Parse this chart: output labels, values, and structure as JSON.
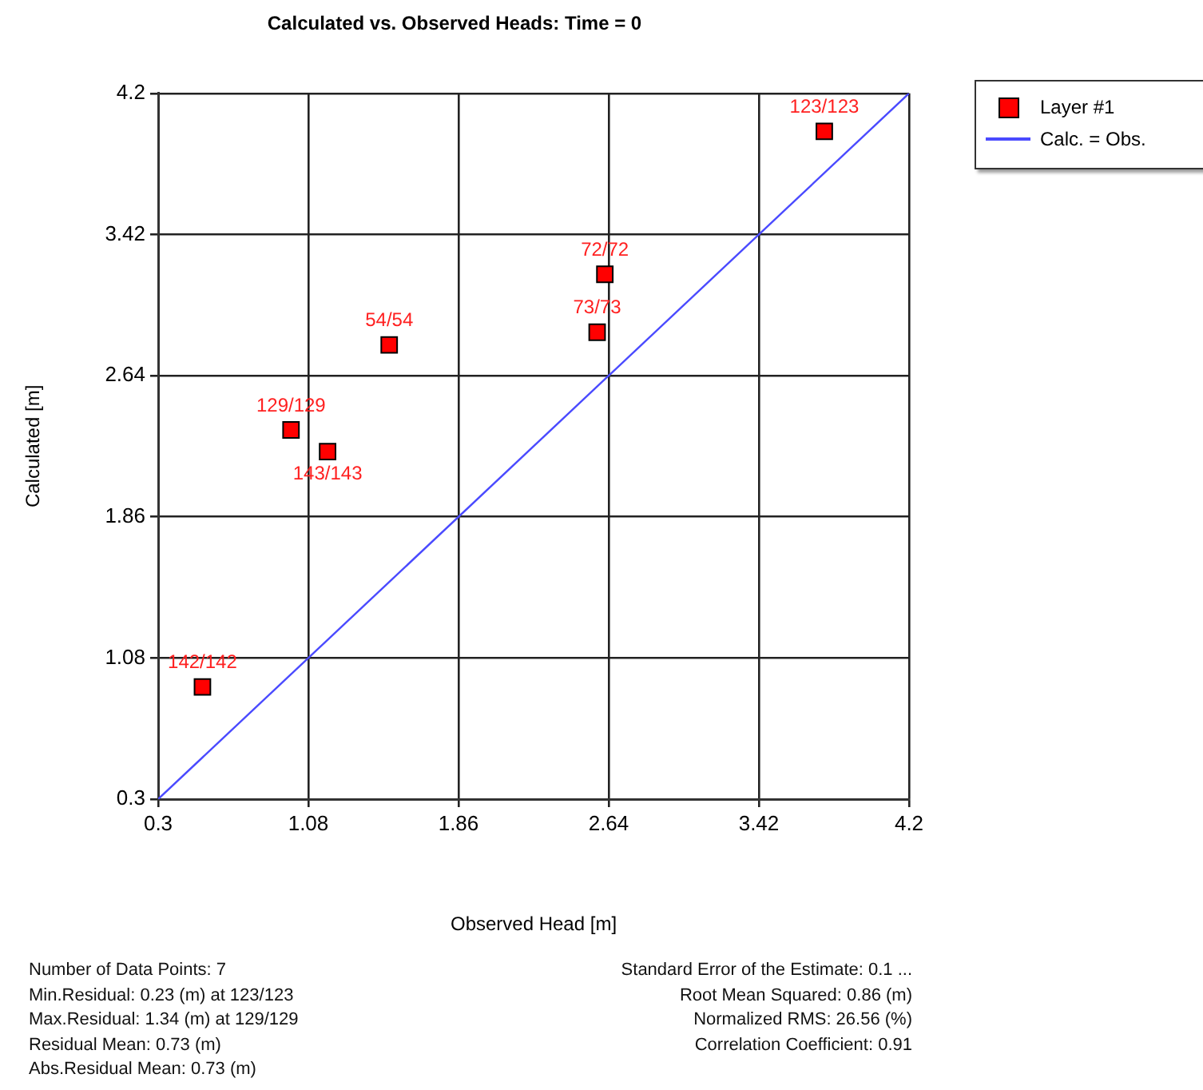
{
  "chart_data": {
    "type": "scatter",
    "title": "Calculated vs. Observed Heads: Time = 0",
    "xlabel": "Observed Head [m]",
    "ylabel": "Calculated [m]",
    "xlim": [
      0.3,
      4.2
    ],
    "ylim": [
      0.3,
      4.2
    ],
    "xticks": [
      0.3,
      1.08,
      1.86,
      2.64,
      3.42,
      4.2
    ],
    "yticks": [
      0.3,
      1.08,
      1.86,
      2.64,
      3.42,
      4.2
    ],
    "grid": true,
    "legend": "top right",
    "marker": "square",
    "series": [
      {
        "name": "Layer #1",
        "color": "#ff0000",
        "x": [
          0.53,
          0.99,
          1.18,
          1.5,
          2.58,
          2.62,
          3.76
        ],
        "values": [
          0.92,
          2.34,
          2.22,
          2.81,
          2.88,
          3.2,
          3.99
        ]
      },
      {
        "name": "Calc. = Obs.",
        "type": "line",
        "color": "#4a4aff",
        "marker": "none",
        "x": [
          0.3,
          4.2
        ],
        "values": [
          0.3,
          4.2
        ]
      }
    ],
    "annotations": [
      {
        "text": "142/142",
        "x": 0.53,
        "y": 0.92
      },
      {
        "text": "129/129",
        "x": 0.99,
        "y": 2.34
      },
      {
        "text": "143/143",
        "x": 1.18,
        "y": 2.22
      },
      {
        "text": "54/54",
        "x": 1.5,
        "y": 2.81
      },
      {
        "text": "73/73",
        "x": 2.58,
        "y": 2.88
      },
      {
        "text": "72/72",
        "x": 2.62,
        "y": 3.2
      },
      {
        "text": "123/123",
        "x": 3.76,
        "y": 3.99
      },
      "Number of Data Points: 7",
      "Min.Residual: 0.23 (m) at 123/123",
      "Max.Residual: 1.34 (m) at 129/129",
      "Residual Mean: 0.73 (m)",
      "Abs.Residual Mean: 0.73 (m)",
      "Standard Error of the Estimate: 0.1 ...",
      "Root Mean Squared: 0.86 (m)",
      "Normalized RMS: 26.56 (%)",
      "Correlation Coefficient: 0.91"
    ]
  }
}
